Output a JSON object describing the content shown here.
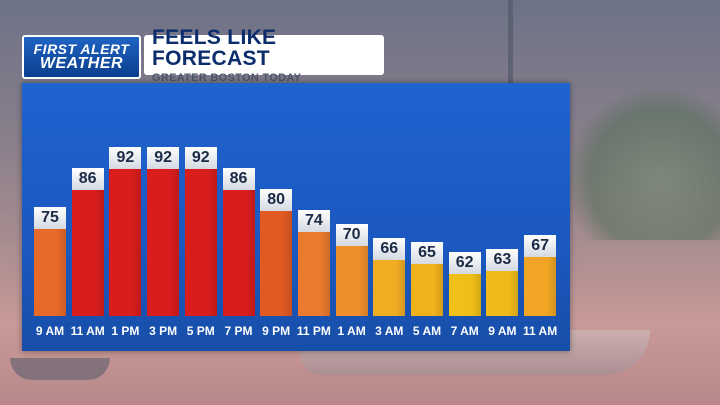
{
  "header": {
    "logo_line1": "FIRST ALERT",
    "logo_line2": "WEATHER",
    "title": "FEELS LIKE FORECAST",
    "subtitle": "GREATER BOSTON TODAY"
  },
  "colors": {
    "panel": "#1b58c0",
    "hot_red": "#d91d1d",
    "warm_orange": "#e86522",
    "mild_gold": "#f0b21c"
  },
  "chart_data": {
    "type": "bar",
    "title": "FEELS LIKE FORECAST",
    "subtitle": "GREATER BOSTON TODAY",
    "categories": [
      "9 AM",
      "11 AM",
      "1 PM",
      "3 PM",
      "5 PM",
      "7 PM",
      "9 PM",
      "11 PM",
      "1 AM",
      "3 AM",
      "5 AM",
      "7 AM",
      "9 AM",
      "11 AM"
    ],
    "values": [
      75,
      86,
      92,
      92,
      92,
      86,
      80,
      74,
      70,
      66,
      65,
      62,
      63,
      67
    ],
    "bar_colors": [
      "#e86a2a",
      "#d91d1d",
      "#d91d1d",
      "#d91d1d",
      "#d91d1d",
      "#d91d1d",
      "#e05a22",
      "#ea7a2e",
      "#ef8f2c",
      "#f0ad22",
      "#f0b21c",
      "#f0bf18",
      "#f0bb1a",
      "#f0a624"
    ],
    "ylim": [
      50,
      100
    ],
    "grid": false,
    "legend": "none"
  }
}
